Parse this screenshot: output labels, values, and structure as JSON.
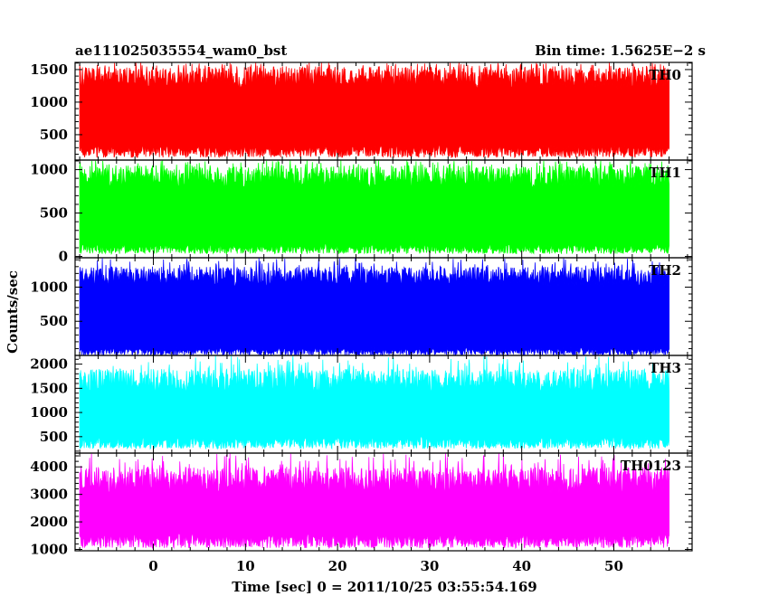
{
  "header": {
    "left_title": "ae111025035554_wam0_bst",
    "right_title": "Bin time: 1.5625E−2 s"
  },
  "chart_data": {
    "type": "line",
    "xlabel": "Time [sec] 0 = 2011/10/25 03:55:54.169",
    "ylabel": "Counts/sec",
    "xlim": [
      -8.5,
      58.5
    ],
    "x_data_range": [
      -8,
      56
    ],
    "x_ticks": [
      0,
      10,
      20,
      30,
      40,
      50
    ],
    "x_tick_labels": [
      "0",
      "10",
      "20",
      "30",
      "40",
      "50"
    ],
    "grid": false,
    "panels": [
      {
        "name": "TH0",
        "color": "#ff0000",
        "ylim": [
          110,
          1610
        ],
        "y_ticks": [
          500,
          1000,
          1500
        ],
        "y_tick_labels": [
          "500",
          "1000",
          "1500"
        ],
        "band_low": [
          150,
          350
        ],
        "band_high": [
          1200,
          1550
        ],
        "spike_max": 1610
      },
      {
        "name": "TH1",
        "color": "#00ff00",
        "ylim": [
          -15,
          1110
        ],
        "y_ticks": [
          0,
          500,
          1000
        ],
        "y_tick_labels": [
          "0",
          "500",
          "1000"
        ],
        "band_low": [
          30,
          150
        ],
        "band_high": [
          780,
          1050
        ],
        "spike_max": 1110
      },
      {
        "name": "TH2",
        "color": "#0000ff",
        "ylim": [
          0,
          1430
        ],
        "y_ticks": [
          500,
          1000
        ],
        "y_tick_labels": [
          "500",
          "1000"
        ],
        "band_low": [
          0,
          120
        ],
        "band_high": [
          1000,
          1300
        ],
        "spike_max": 1430
      },
      {
        "name": "TH3",
        "color": "#00ffff",
        "ylim": [
          160,
          2180
        ],
        "y_ticks": [
          500,
          1000,
          1500,
          2000
        ],
        "y_tick_labels": [
          "500",
          "1000",
          "1500",
          "2000"
        ],
        "band_low": [
          250,
          500
        ],
        "band_high": [
          1400,
          1900
        ],
        "spike_max": 2180
      },
      {
        "name": "TH0123",
        "color": "#ff00ff",
        "ylim": [
          950,
          4500
        ],
        "y_ticks": [
          1000,
          2000,
          3000,
          4000
        ],
        "y_tick_labels": [
          "1000",
          "2000",
          "3000",
          "4000"
        ],
        "band_low": [
          1050,
          1600
        ],
        "band_high": [
          3000,
          4000
        ],
        "spike_max": 4500
      }
    ]
  }
}
